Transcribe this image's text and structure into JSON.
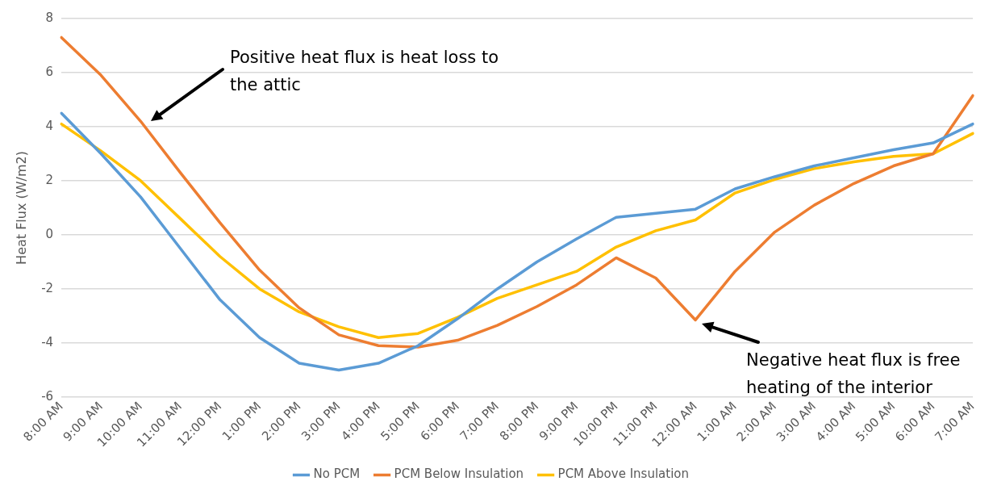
{
  "chart_data": {
    "type": "line",
    "ylabel": "Heat Flux (W/m2)",
    "categories": [
      "8:00 AM",
      "9:00 AM",
      "10:00 AM",
      "11:00 AM",
      "12:00 PM",
      "1:00 PM",
      "2:00 PM",
      "3:00 PM",
      "4:00 PM",
      "5:00 PM",
      "6:00 PM",
      "7:00 PM",
      "8:00 PM",
      "9:00 PM",
      "10:00 PM",
      "11:00 PM",
      "12:00 AM",
      "1:00 AM",
      "2:00 AM",
      "3:00 AM",
      "4:00 AM",
      "5:00 AM",
      "6:00 AM",
      "7:00 AM"
    ],
    "series": [
      {
        "name": "No PCM",
        "color": "#5b9bd5",
        "values": [
          4.5,
          3.0,
          1.4,
          -0.5,
          -2.4,
          -3.8,
          -4.75,
          -5.0,
          -4.75,
          -4.1,
          -3.1,
          -2.0,
          -1.0,
          -0.15,
          0.65,
          0.8,
          0.95,
          1.7,
          2.15,
          2.55,
          2.85,
          3.15,
          3.4,
          4.1
        ]
      },
      {
        "name": "PCM Below Insulation",
        "color": "#ed7d31",
        "values": [
          7.3,
          5.9,
          4.2,
          2.3,
          0.45,
          -1.3,
          -2.7,
          -3.7,
          -4.1,
          -4.15,
          -3.9,
          -3.35,
          -2.65,
          -1.85,
          -0.85,
          -1.6,
          -3.15,
          -1.35,
          0.1,
          1.1,
          1.9,
          2.55,
          3.0,
          5.15
        ]
      },
      {
        "name": "PCM Above Insulation",
        "color": "#ffc000",
        "values": [
          4.1,
          3.1,
          2.0,
          0.6,
          -0.8,
          -2.0,
          -2.85,
          -3.4,
          -3.8,
          -3.65,
          -3.05,
          -2.35,
          -1.85,
          -1.35,
          -0.45,
          0.15,
          0.55,
          1.55,
          2.05,
          2.45,
          2.7,
          2.9,
          3.0,
          3.75
        ]
      }
    ],
    "ylim": [
      -6,
      8
    ],
    "yticks": [
      -6,
      -4,
      -2,
      0,
      2,
      4,
      6,
      8
    ],
    "grid": "y",
    "legend": "bottom",
    "marker": "none",
    "line_style": "solid",
    "annotations": [
      "Positive heat flux is heat loss to the attic",
      "Negative heat flux is free heating of the interior"
    ]
  }
}
